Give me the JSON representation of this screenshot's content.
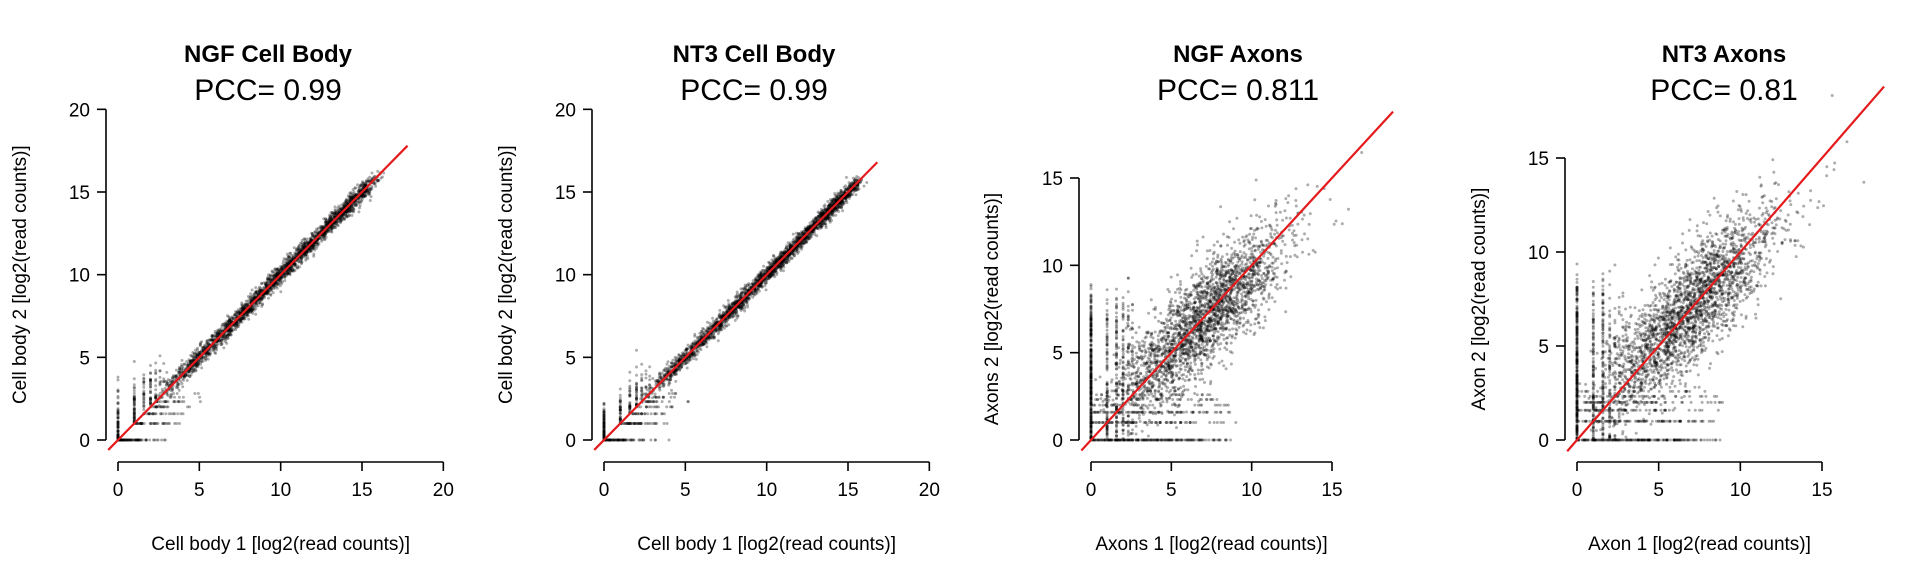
{
  "chart_data": [
    {
      "type": "scatter",
      "title": "NGF Cell Body",
      "subtitle": "PCC= 0.99",
      "xlabel": "Cell body 1 [log2(read counts)]",
      "ylabel": "Cell body 2 [log2(read counts)]",
      "xlim": [
        0,
        20
      ],
      "ylim": [
        0,
        20
      ],
      "xticks": [
        0,
        5,
        10,
        15,
        20
      ],
      "yticks": [
        0,
        5,
        10,
        15,
        20
      ],
      "xmax_data": 17.5,
      "pcc": 0.99,
      "reference_line": "y = x",
      "point_color": "#000000",
      "line_color": "#e41a1c"
    },
    {
      "type": "scatter",
      "title": "NT3 Cell Body",
      "subtitle": "PCC= 0.99",
      "xlabel": "Cell body 1 [log2(read counts)]",
      "ylabel": "Cell body 2 [log2(read counts)]",
      "xlim": [
        0,
        20
      ],
      "ylim": [
        0,
        20
      ],
      "xticks": [
        0,
        5,
        10,
        15,
        20
      ],
      "yticks": [
        0,
        5,
        10,
        15,
        20
      ],
      "xmax_data": 16.5,
      "pcc": 0.99,
      "reference_line": "y = x",
      "point_color": "#000000",
      "line_color": "#e41a1c"
    },
    {
      "type": "scatter",
      "title": "NGF Axons",
      "subtitle": "PCC= 0.811",
      "xlabel": "Axons 1 [log2(read counts)]",
      "ylabel": "Axons 2 [log2(read counts)]",
      "xlim": [
        0,
        18
      ],
      "ylim": [
        0,
        18
      ],
      "xticks": [
        0,
        5,
        10,
        15
      ],
      "yticks": [
        0,
        5,
        10,
        15
      ],
      "xmax_data": 18.5,
      "pcc": 0.811,
      "reference_line": "y = x",
      "point_color": "#000000",
      "line_color": "#e41a1c"
    },
    {
      "type": "scatter",
      "title": "NT3 Axons",
      "subtitle": "PCC= 0.81",
      "xlabel": "Axon 1 [log2(read counts)]",
      "ylabel": "Axon 2 [log2(read counts)]",
      "xlim": [
        0,
        17
      ],
      "ylim": [
        0,
        17
      ],
      "xticks": [
        0,
        5,
        10,
        15
      ],
      "yticks": [
        0,
        5,
        10,
        15
      ],
      "xmax_data": 18.5,
      "pcc": 0.81,
      "reference_line": "y = x",
      "point_color": "#000000",
      "line_color": "#e41a1c"
    }
  ]
}
